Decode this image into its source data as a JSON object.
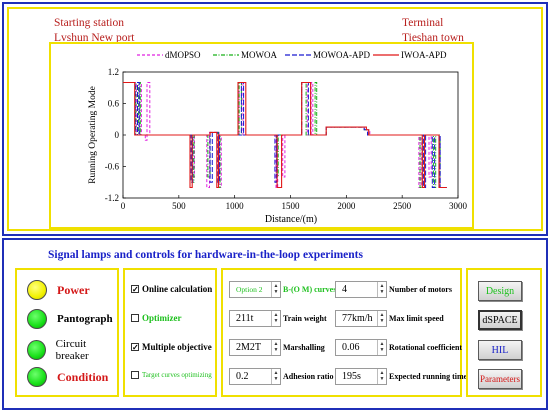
{
  "header": {
    "start_label": "Starting station",
    "start_name": "Lvshun New port",
    "end_label": "Terminal",
    "end_name": "Tieshan town"
  },
  "chart_data": {
    "type": "line",
    "xlabel": "Distance/(m)",
    "ylabel": "Running Operating Mode",
    "xlim": [
      0,
      3000
    ],
    "ylim": [
      -1.2,
      1.2
    ],
    "xticks": [
      "0",
      "500",
      "1000",
      "1500",
      "2000",
      "2500",
      "3000"
    ],
    "yticks": [
      "1.2",
      "0.6",
      "0",
      "-0.6",
      "-1.2"
    ],
    "legend_position": "top",
    "series": [
      {
        "name": "dMOPSO",
        "color": "#e020e0",
        "dash": "3,2",
        "points": [
          [
            0,
            1
          ],
          [
            120,
            1
          ],
          [
            120,
            0
          ],
          [
            150,
            0
          ],
          [
            150,
            1
          ],
          [
            165,
            1
          ],
          [
            165,
            0
          ],
          [
            200,
            0
          ],
          [
            200,
            -0.1
          ],
          [
            215,
            -0.1
          ],
          [
            215,
            1
          ],
          [
            240,
            1
          ],
          [
            240,
            0
          ],
          [
            620,
            0
          ],
          [
            620,
            -0.8
          ],
          [
            640,
            -0.8
          ],
          [
            640,
            0
          ],
          [
            750,
            0
          ],
          [
            750,
            -1
          ],
          [
            775,
            -1
          ],
          [
            775,
            0.05
          ],
          [
            860,
            0.05
          ],
          [
            860,
            -1
          ],
          [
            880,
            -1
          ],
          [
            880,
            0
          ],
          [
            1040,
            0
          ],
          [
            1040,
            1
          ],
          [
            1075,
            1
          ],
          [
            1075,
            0
          ],
          [
            1370,
            0
          ],
          [
            1370,
            -1
          ],
          [
            1385,
            -1
          ],
          [
            1385,
            0
          ],
          [
            1430,
            0
          ],
          [
            1430,
            -0.8
          ],
          [
            1450,
            -0.8
          ],
          [
            1450,
            0
          ],
          [
            1600,
            0
          ],
          [
            1600,
            1
          ],
          [
            1650,
            1
          ],
          [
            1650,
            0
          ],
          [
            1685,
            0
          ],
          [
            1685,
            1
          ],
          [
            1700,
            1
          ],
          [
            1700,
            0
          ],
          [
            1820,
            0
          ],
          [
            1820,
            0.15
          ],
          [
            2160,
            0.15
          ],
          [
            2160,
            0.1
          ],
          [
            2210,
            0.1
          ],
          [
            2210,
            0
          ],
          [
            2650,
            0
          ],
          [
            2650,
            -1
          ],
          [
            2670,
            -1
          ],
          [
            2670,
            0
          ],
          [
            2740,
            0
          ],
          [
            2740,
            -0.8
          ],
          [
            2760,
            -0.8
          ],
          [
            2760,
            0
          ],
          [
            2840,
            0
          ],
          [
            2840,
            -1
          ],
          [
            2900,
            -1
          ]
        ]
      },
      {
        "name": "MOWOA",
        "color": "#18b018",
        "dash": "4,1.5,1,1.5",
        "points": [
          [
            0,
            1
          ],
          [
            115,
            1
          ],
          [
            115,
            0
          ],
          [
            140,
            0
          ],
          [
            140,
            1
          ],
          [
            155,
            1
          ],
          [
            155,
            0
          ],
          [
            620,
            0
          ],
          [
            620,
            -0.9
          ],
          [
            635,
            -0.9
          ],
          [
            635,
            0
          ],
          [
            760,
            0
          ],
          [
            760,
            -0.8
          ],
          [
            780,
            -0.8
          ],
          [
            780,
            0.05
          ],
          [
            855,
            0.05
          ],
          [
            855,
            -1
          ],
          [
            870,
            -1
          ],
          [
            870,
            0
          ],
          [
            1040,
            0
          ],
          [
            1040,
            1
          ],
          [
            1060,
            1
          ],
          [
            1060,
            0
          ],
          [
            1375,
            0
          ],
          [
            1375,
            -0.8
          ],
          [
            1390,
            -0.8
          ],
          [
            1390,
            0
          ],
          [
            1600,
            0
          ],
          [
            1600,
            1
          ],
          [
            1640,
            1
          ],
          [
            1640,
            0
          ],
          [
            1720,
            0
          ],
          [
            1720,
            1
          ],
          [
            1735,
            1
          ],
          [
            1735,
            0
          ],
          [
            1820,
            0
          ],
          [
            1820,
            0.15
          ],
          [
            2160,
            0.15
          ],
          [
            2160,
            0.1
          ],
          [
            2200,
            0.1
          ],
          [
            2200,
            0
          ],
          [
            2660,
            0
          ],
          [
            2660,
            -1
          ],
          [
            2680,
            -1
          ],
          [
            2680,
            0
          ],
          [
            2780,
            0
          ],
          [
            2780,
            -1
          ],
          [
            2800,
            -1
          ],
          [
            2800,
            0
          ],
          [
            2840,
            0
          ],
          [
            2840,
            -1
          ],
          [
            2900,
            -1
          ]
        ]
      },
      {
        "name": "MOWOA-APD",
        "color": "#1a1ad0",
        "dash": "5,2",
        "points": [
          [
            0,
            1
          ],
          [
            110,
            1
          ],
          [
            110,
            0
          ],
          [
            130,
            0
          ],
          [
            130,
            1
          ],
          [
            145,
            1
          ],
          [
            145,
            0
          ],
          [
            610,
            0
          ],
          [
            610,
            -0.9
          ],
          [
            625,
            -0.9
          ],
          [
            625,
            0
          ],
          [
            780,
            0
          ],
          [
            780,
            -0.9
          ],
          [
            800,
            -0.9
          ],
          [
            800,
            0.05
          ],
          [
            850,
            0.05
          ],
          [
            850,
            -0.9
          ],
          [
            865,
            -0.9
          ],
          [
            865,
            0
          ],
          [
            1060,
            0
          ],
          [
            1060,
            1
          ],
          [
            1080,
            1
          ],
          [
            1080,
            0
          ],
          [
            1360,
            0
          ],
          [
            1360,
            -0.9
          ],
          [
            1375,
            -0.9
          ],
          [
            1375,
            0
          ],
          [
            1600,
            0
          ],
          [
            1600,
            1
          ],
          [
            1660,
            1
          ],
          [
            1660,
            0
          ],
          [
            1820,
            0
          ],
          [
            1820,
            0.15
          ],
          [
            2160,
            0.15
          ],
          [
            2160,
            0.1
          ],
          [
            2190,
            0.1
          ],
          [
            2190,
            0
          ],
          [
            2690,
            0
          ],
          [
            2690,
            -1
          ],
          [
            2710,
            -1
          ],
          [
            2710,
            0
          ],
          [
            2770,
            0
          ],
          [
            2770,
            -1
          ],
          [
            2790,
            -1
          ],
          [
            2790,
            0
          ],
          [
            2840,
            0
          ],
          [
            2840,
            -1
          ],
          [
            2900,
            -1
          ]
        ]
      },
      {
        "name": "IWOA-APD",
        "color": "#e01818",
        "dash": "",
        "points": [
          [
            0,
            1
          ],
          [
            105,
            1
          ],
          [
            105,
            0
          ],
          [
            600,
            0
          ],
          [
            600,
            -1
          ],
          [
            620,
            -1
          ],
          [
            620,
            0
          ],
          [
            780,
            0
          ],
          [
            780,
            0.05
          ],
          [
            840,
            0.05
          ],
          [
            840,
            -1
          ],
          [
            855,
            -1
          ],
          [
            855,
            0
          ],
          [
            1030,
            0
          ],
          [
            1030,
            1
          ],
          [
            1100,
            1
          ],
          [
            1100,
            0
          ],
          [
            1380,
            0
          ],
          [
            1380,
            -1
          ],
          [
            1420,
            -1
          ],
          [
            1420,
            0
          ],
          [
            1600,
            0
          ],
          [
            1600,
            1
          ],
          [
            1680,
            1
          ],
          [
            1680,
            0
          ],
          [
            1820,
            0
          ],
          [
            1820,
            0.15
          ],
          [
            2180,
            0.15
          ],
          [
            2180,
            0.1
          ],
          [
            2200,
            0.1
          ],
          [
            2200,
            0
          ],
          [
            2680,
            0
          ],
          [
            2680,
            -1
          ],
          [
            2700,
            -1
          ],
          [
            2700,
            0
          ],
          [
            2830,
            0
          ],
          [
            2830,
            -1
          ],
          [
            2900,
            -1
          ]
        ]
      }
    ]
  },
  "controls": {
    "title": "Signal lamps and controls for hardware-in-the-loop experiments",
    "lamps": [
      {
        "label": "Power"
      },
      {
        "label": "Pantograph"
      },
      {
        "label": "Circuit breaker"
      },
      {
        "label": "Condition"
      }
    ],
    "checkboxes": [
      {
        "label": "Online calculation",
        "checked": true,
        "check_mark": "✓"
      },
      {
        "label": "Optimizer",
        "checked": false,
        "check_mark": ""
      },
      {
        "label": "Multiple objective",
        "checked": true,
        "check_mark": "✓"
      },
      {
        "label": "Target curves optimizing",
        "checked": false,
        "check_mark": ""
      }
    ],
    "params": [
      {
        "value": "Option 2",
        "label": "B-(O M) curves"
      },
      {
        "value": "4",
        "label": "Number of motors"
      },
      {
        "value": "211t",
        "label": "Train weight"
      },
      {
        "value": "77km/h",
        "label": "Max limit speed"
      },
      {
        "value": "2M2T",
        "label": "Marshalling"
      },
      {
        "value": "0.06",
        "label": "Rotational coefficient"
      },
      {
        "value": "0.2",
        "label": "Adhesion ratio"
      },
      {
        "value": "195s",
        "label": "Expected running time"
      }
    ],
    "buttons": [
      {
        "label": "Design"
      },
      {
        "label": "dSPACE"
      },
      {
        "label": "HIL"
      },
      {
        "label": "Parameters"
      }
    ]
  },
  "colors": {
    "frame_blue": "#1f2fb8",
    "frame_yellow": "#f0e000",
    "station_red": "#b8201e",
    "title_blue": "#1a22c8"
  }
}
